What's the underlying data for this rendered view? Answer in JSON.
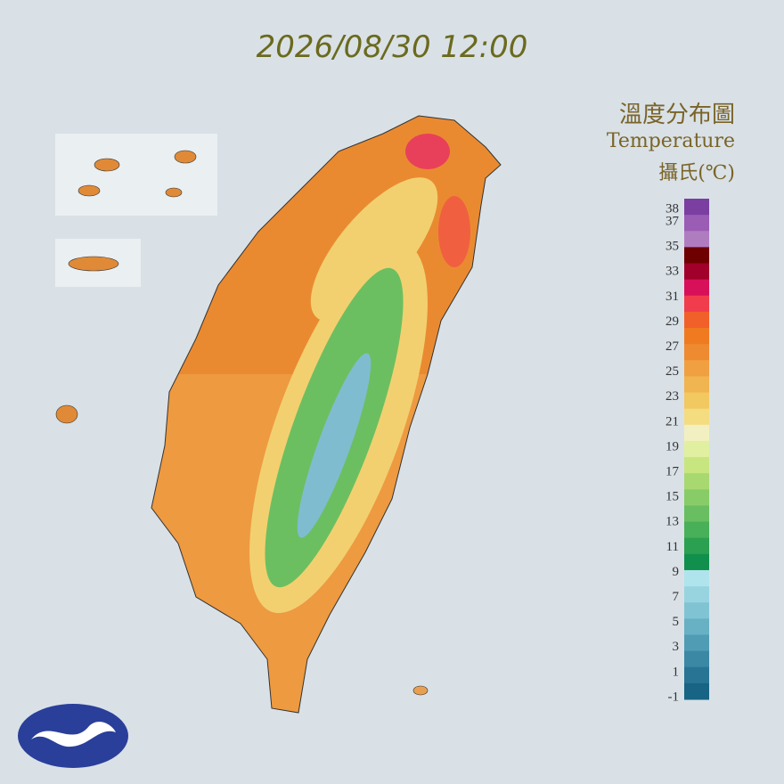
{
  "header": {
    "title": "2026/08/30 12:00"
  },
  "legend": {
    "title": "溫度分布圖",
    "subtitle": "Temperature",
    "unit": "攝氏(℃)",
    "ticks": [
      38,
      37,
      35,
      33,
      31,
      29,
      27,
      25,
      23,
      21,
      19,
      17,
      15,
      13,
      11,
      9,
      7,
      5,
      3,
      1,
      -1
    ],
    "colors": [
      "#7a3fa0",
      "#9a5cb4",
      "#b07cc0",
      "#6e0000",
      "#a0002a",
      "#d8105a",
      "#f03c4c",
      "#f06028",
      "#f07a20",
      "#ee8a30",
      "#f0a040",
      "#f0b450",
      "#f2c860",
      "#f4dc80",
      "#f2f0c0",
      "#e0f0a0",
      "#c8e680",
      "#a8d870",
      "#88cc68",
      "#68be60",
      "#48b058",
      "#2aa050",
      "#10904c",
      "#b0e4ec",
      "#98d4e0",
      "#80c4d4",
      "#68b0c4",
      "#509cb4",
      "#3a88a4",
      "#287494",
      "#186484"
    ]
  }
}
